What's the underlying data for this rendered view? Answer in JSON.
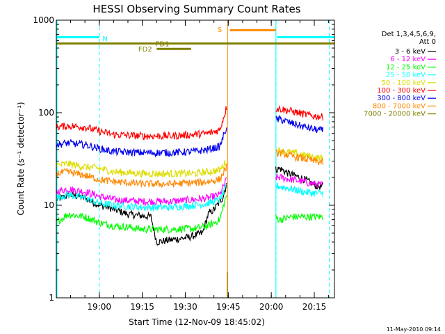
{
  "chart_data": {
    "type": "line",
    "title": "HESSI Observing Summary Count Rates",
    "xlabel": "Start Time (12-Nov-09 18:45:02)",
    "ylabel": "Count Rate (s⁻¹ detector⁻¹)",
    "yscale": "log",
    "ylim": [
      1,
      1000
    ],
    "xlim_minutes_from_start": [
      0,
      97
    ],
    "y_ticks": [
      "1",
      "10",
      "100",
      "1000"
    ],
    "x_ticks": [
      {
        "t": 14.97,
        "label": "19:00"
      },
      {
        "t": 29.97,
        "label": "19:15"
      },
      {
        "t": 44.97,
        "label": "19:30"
      },
      {
        "t": 59.97,
        "label": "19:45"
      },
      {
        "t": 74.97,
        "label": "20:00"
      },
      {
        "t": 89.97,
        "label": "20:15"
      }
    ],
    "legend_header": [
      "Det 1,3,4,5,6,9,",
      "Att 0"
    ],
    "legend_position": "right",
    "footer_date": "11-May-2010 09:14",
    "gaps": [
      [
        59.5,
        76.5
      ]
    ],
    "series": [
      {
        "name": "3 - 6 keV",
        "color": "#000000",
        "points": [
          [
            0,
            11.5
          ],
          [
            5,
            13
          ],
          [
            10,
            12
          ],
          [
            15,
            10
          ],
          [
            18,
            9.5
          ],
          [
            25,
            8
          ],
          [
            33,
            7.5
          ],
          [
            35,
            4
          ],
          [
            46,
            4.5
          ],
          [
            48,
            4.7
          ],
          [
            51,
            5
          ],
          [
            53,
            8
          ],
          [
            55,
            9
          ],
          [
            58,
            12
          ],
          [
            59.4,
            17
          ],
          [
            78,
            25
          ],
          [
            81,
            22
          ],
          [
            85,
            20
          ],
          [
            88,
            18
          ],
          [
            91,
            16
          ],
          [
            93,
            16
          ]
        ]
      },
      {
        "name": "6 - 12 keV",
        "color": "#ff00ff",
        "points": [
          [
            0,
            14
          ],
          [
            4,
            15
          ],
          [
            10,
            14
          ],
          [
            15,
            12.5
          ],
          [
            20,
            11.5
          ],
          [
            30,
            11
          ],
          [
            40,
            11
          ],
          [
            48,
            11.5
          ],
          [
            53,
            12
          ],
          [
            57,
            13
          ],
          [
            59.4,
            19
          ],
          [
            78,
            20
          ],
          [
            82,
            19
          ],
          [
            86,
            18
          ],
          [
            90,
            17
          ],
          [
            93,
            16.5
          ]
        ]
      },
      {
        "name": "12 - 25 keV",
        "color": "#00ff00",
        "points": [
          [
            0,
            6.5
          ],
          [
            4,
            8
          ],
          [
            10,
            7.5
          ],
          [
            15,
            6.5
          ],
          [
            20,
            6
          ],
          [
            25,
            5.8
          ],
          [
            30,
            5.5
          ],
          [
            40,
            5.5
          ],
          [
            48,
            5.6
          ],
          [
            53,
            6
          ],
          [
            57,
            7
          ],
          [
            59.4,
            13
          ],
          [
            78,
            7
          ],
          [
            82,
            7.5
          ],
          [
            86,
            7.5
          ],
          [
            90,
            7.5
          ],
          [
            93,
            7.5
          ]
        ]
      },
      {
        "name": "25 - 50 keV",
        "color": "#00ffff",
        "points": [
          [
            0,
            12
          ],
          [
            4,
            13
          ],
          [
            10,
            12
          ],
          [
            15,
            10.5
          ],
          [
            20,
            10
          ],
          [
            30,
            9.5
          ],
          [
            40,
            9.5
          ],
          [
            48,
            10
          ],
          [
            53,
            10.5
          ],
          [
            57,
            11.5
          ],
          [
            59.4,
            16
          ],
          [
            78,
            16
          ],
          [
            82,
            15
          ],
          [
            86,
            14
          ],
          [
            90,
            13.5
          ],
          [
            93,
            13.5
          ]
        ]
      },
      {
        "name": "50 - 100 keV",
        "color": "#dddd00",
        "points": [
          [
            0,
            27
          ],
          [
            4,
            28
          ],
          [
            10,
            26
          ],
          [
            15,
            25
          ],
          [
            20,
            23
          ],
          [
            30,
            22
          ],
          [
            40,
            22
          ],
          [
            48,
            22
          ],
          [
            53,
            23
          ],
          [
            57,
            24
          ],
          [
            59.4,
            30
          ],
          [
            78,
            39
          ],
          [
            82,
            37
          ],
          [
            86,
            35
          ],
          [
            90,
            33
          ],
          [
            93,
            32
          ]
        ]
      },
      {
        "name": "100 - 300 keV",
        "color": "#ff0000",
        "points": [
          [
            0,
            70
          ],
          [
            4,
            72
          ],
          [
            10,
            70
          ],
          [
            15,
            63
          ],
          [
            20,
            58
          ],
          [
            30,
            56
          ],
          [
            40,
            56
          ],
          [
            48,
            58
          ],
          [
            53,
            60
          ],
          [
            57,
            65
          ],
          [
            59.4,
            115
          ],
          [
            78,
            110
          ],
          [
            82,
            104
          ],
          [
            86,
            97
          ],
          [
            90,
            92
          ],
          [
            93,
            90
          ]
        ]
      },
      {
        "name": "300 - 800 keV",
        "color": "#0000ee",
        "points": [
          [
            0,
            45
          ],
          [
            4,
            47
          ],
          [
            10,
            45
          ],
          [
            15,
            41
          ],
          [
            20,
            38
          ],
          [
            30,
            37
          ],
          [
            40,
            37
          ],
          [
            48,
            38
          ],
          [
            53,
            40
          ],
          [
            57,
            43
          ],
          [
            59.4,
            70
          ],
          [
            78,
            85
          ],
          [
            82,
            77
          ],
          [
            86,
            71
          ],
          [
            90,
            66
          ],
          [
            93,
            64
          ]
        ]
      },
      {
        "name": "800 - 7000 keV",
        "color": "#ff8800",
        "points": [
          [
            0,
            22
          ],
          [
            4,
            23
          ],
          [
            10,
            21
          ],
          [
            15,
            19
          ],
          [
            20,
            18
          ],
          [
            30,
            17
          ],
          [
            40,
            17
          ],
          [
            48,
            17.5
          ],
          [
            53,
            18
          ],
          [
            57,
            19
          ],
          [
            59.4,
            26
          ],
          [
            78,
            37
          ],
          [
            82,
            34
          ],
          [
            86,
            32
          ],
          [
            90,
            30
          ],
          [
            93,
            29
          ]
        ]
      },
      {
        "name": "7000 - 20000 keV",
        "color": "#808000",
        "points": []
      }
    ],
    "flag_bars": [
      {
        "label": "N",
        "color": "#00ffff",
        "t0": 0,
        "t1": 15,
        "level": 655,
        "label_t": 17,
        "label_level": 640
      },
      {
        "label": "N",
        "color": "#00ffff",
        "t0": 77,
        "t1": 97,
        "level": 655,
        "label_t": null,
        "label_level": null
      },
      {
        "label": "S",
        "color": "#ff8800",
        "t0": 60.5,
        "t1": 76.5,
        "level": 780,
        "label_t": 57,
        "label_level": 800
      },
      {
        "label": "FD1",
        "color": "#808000",
        "t0": 0,
        "t1": 97,
        "level": 560,
        "label_t": 37,
        "label_level": 560
      },
      {
        "label": "FD2",
        "color": "#808000",
        "t0": 35,
        "t1": 47,
        "level": 490,
        "label_t": 31,
        "label_level": 490
      }
    ],
    "vertical_dashed": [
      15,
      76.6,
      95.2
    ],
    "vertical_solid": [
      {
        "t": 59.8,
        "color": "#ff8800"
      },
      {
        "t": 59.6,
        "color": "#808000",
        "lo": 1,
        "hi": 1.9
      },
      {
        "t": 76.6,
        "color": "#00ffff"
      }
    ]
  }
}
